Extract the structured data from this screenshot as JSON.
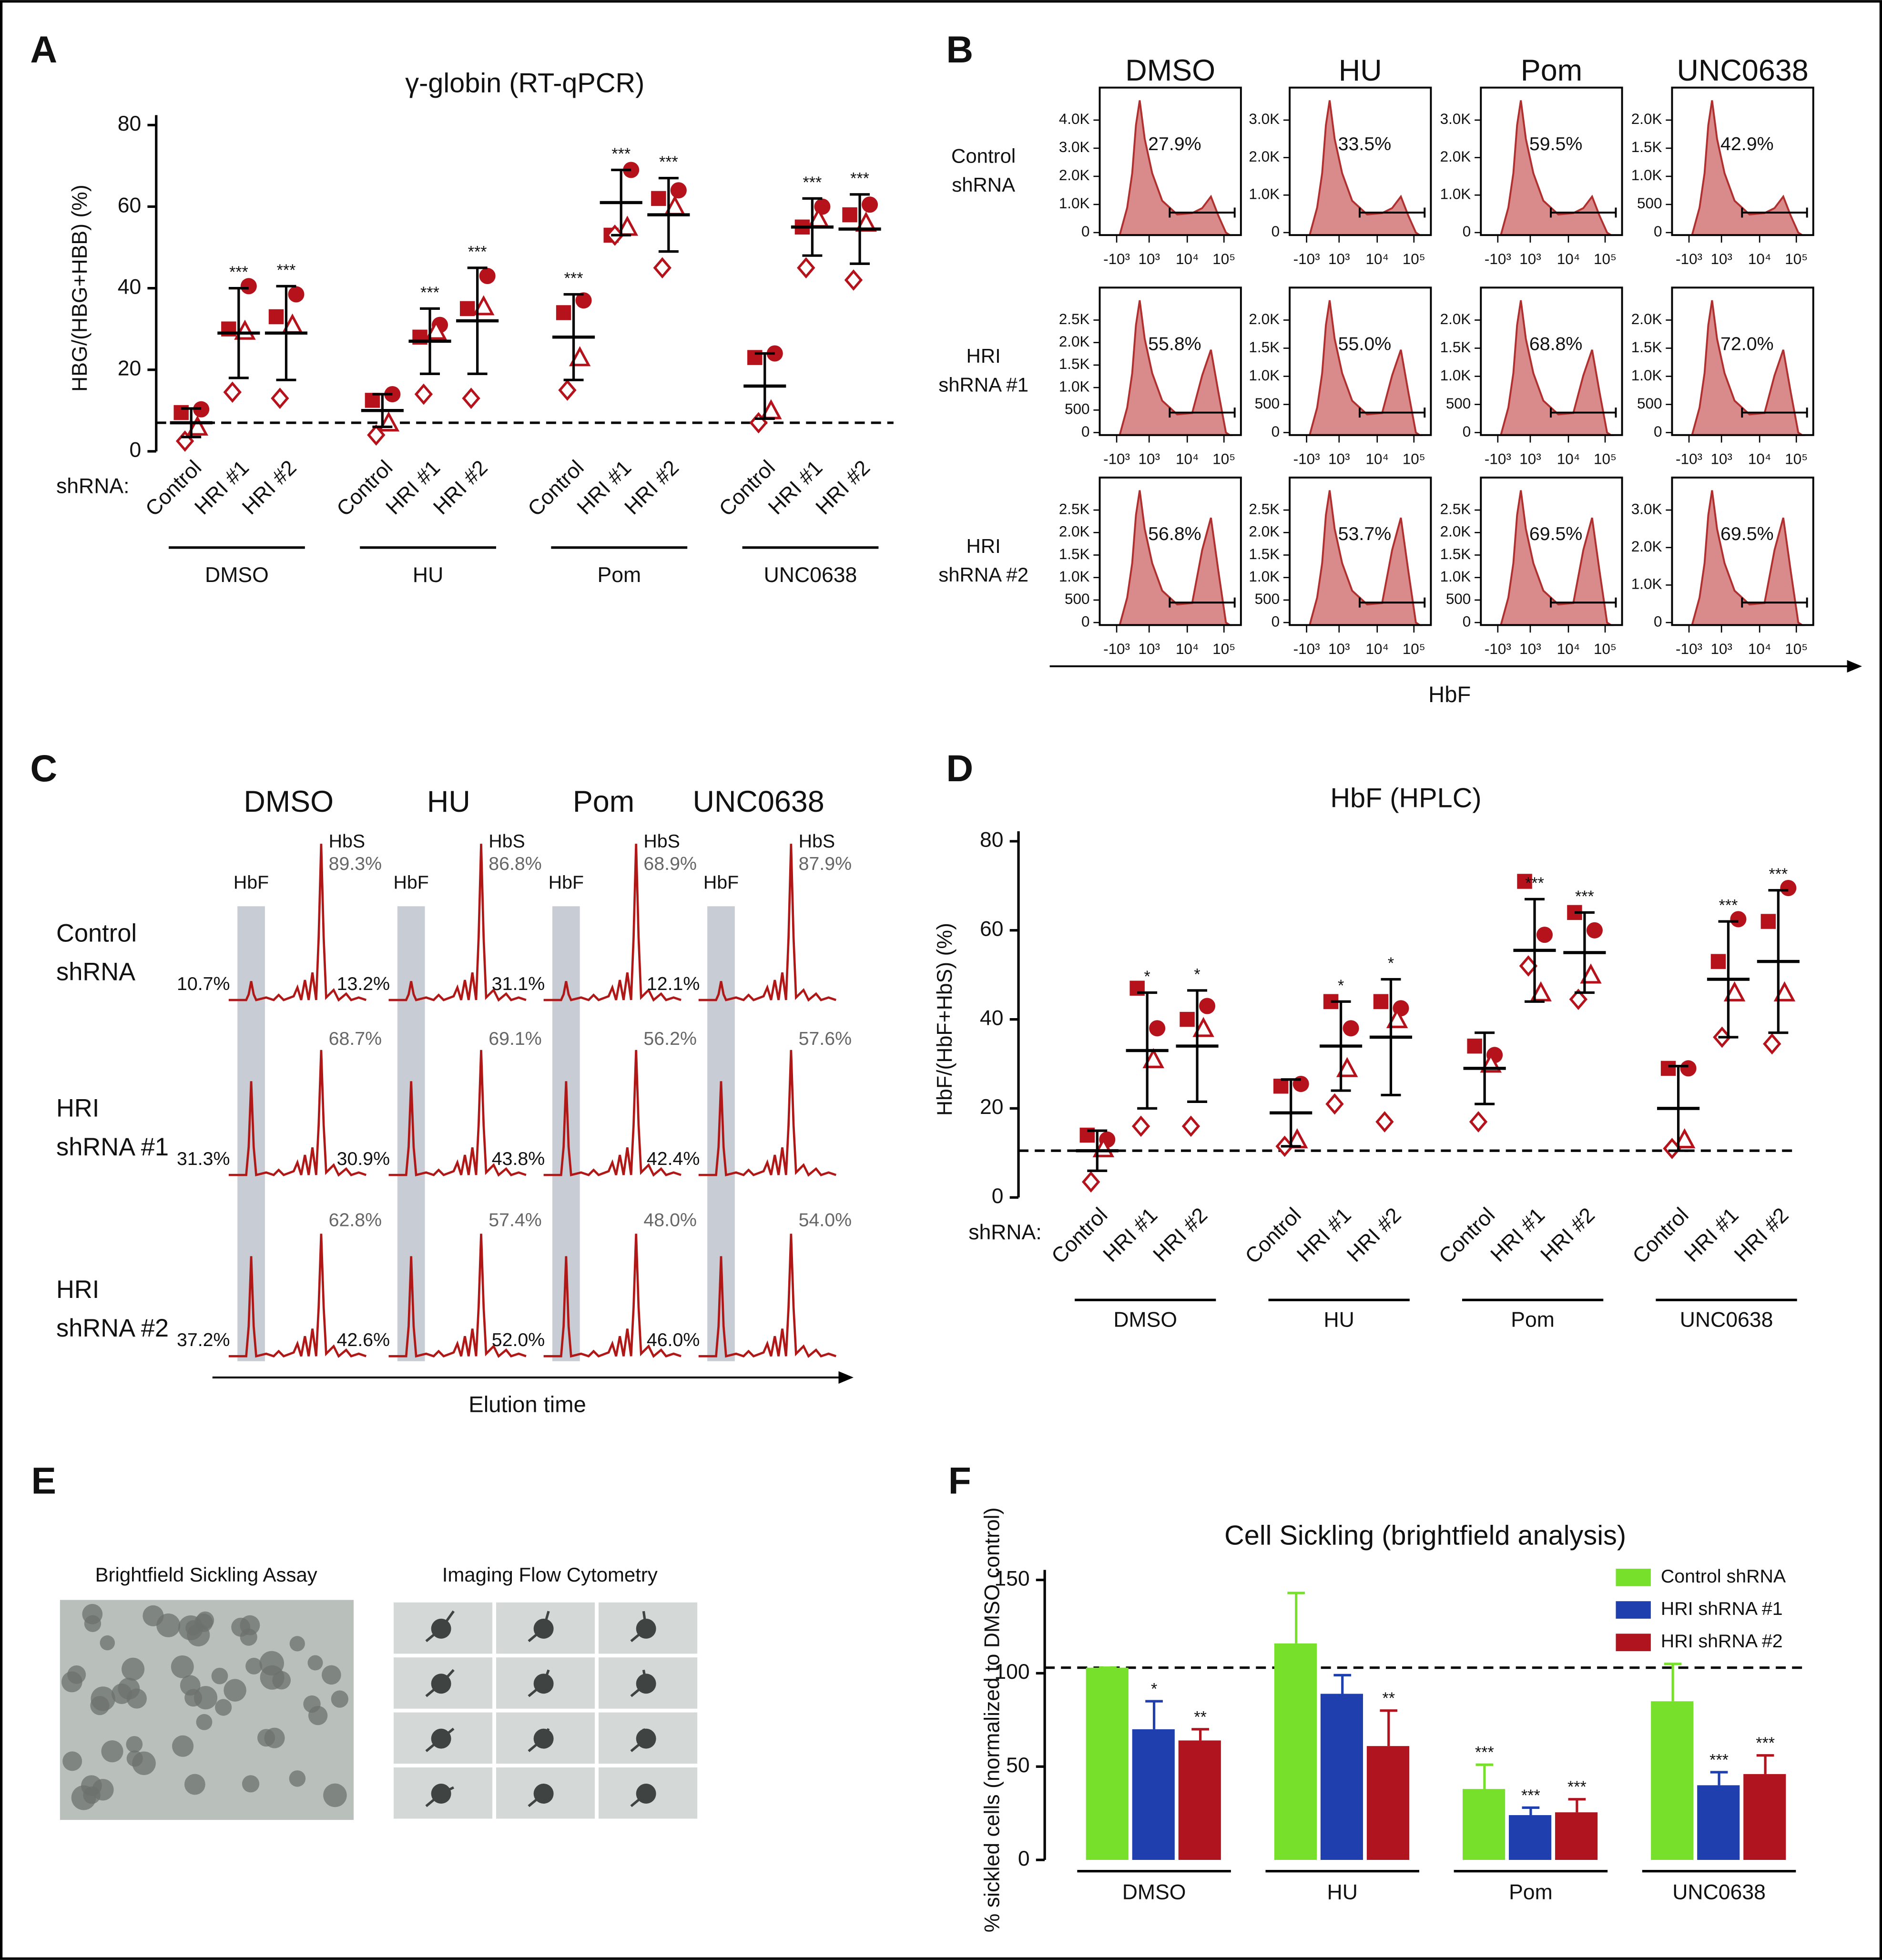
{
  "panel_labels": [
    "A",
    "B",
    "C",
    "D",
    "E",
    "F"
  ],
  "chart_data": [
    {
      "type": "dot",
      "title": "γ-globin (RT-qPCR)",
      "y_label": "HBG/(HBG+HBB) (%)",
      "row_label": "shRNA:",
      "ylim": [
        0,
        80
      ],
      "yticks": [
        0,
        20,
        40,
        60,
        80
      ],
      "categories": [
        "Control",
        "HRI #1",
        "HRI #2",
        "Control",
        "HRI #1",
        "HRI #2",
        "Control",
        "HRI #1",
        "HRI #2",
        "Control",
        "HRI #1",
        "HRI #2"
      ],
      "groups": [
        "DMSO",
        "HU",
        "Pom",
        "UNC0638"
      ],
      "series": [
        {
          "marker": "square",
          "color": "#b5121b",
          "values": [
            9.5,
            30,
            33,
            12.5,
            28,
            35,
            34,
            53,
            62,
            23,
            55,
            58
          ]
        },
        {
          "marker": "circle",
          "color": "#b5121b",
          "values": [
            10.3,
            40.5,
            38.5,
            14,
            31,
            43,
            37,
            69,
            64,
            24,
            60,
            60.5
          ]
        },
        {
          "marker": "triangle-open",
          "color": "#b5121b",
          "values": [
            6,
            29.5,
            31,
            7,
            29.5,
            35.5,
            23,
            55,
            60,
            10,
            57,
            56
          ]
        },
        {
          "marker": "diamond-open",
          "color": "#b5121b",
          "values": [
            2.5,
            14.5,
            13,
            4,
            14,
            13,
            15,
            53,
            45,
            7,
            45,
            42
          ]
        }
      ],
      "mean": [
        7,
        29,
        29,
        10,
        27,
        32,
        28,
        61,
        58,
        16,
        55,
        54.5
      ],
      "sd": [
        3.5,
        11,
        11.5,
        4,
        8,
        13,
        10.5,
        8,
        9,
        8,
        7,
        8.5
      ],
      "significance": [
        null,
        "***",
        "***",
        null,
        "***",
        "***",
        "***",
        "***",
        "***",
        null,
        "***",
        "***"
      ],
      "reference_line": 7
    },
    {
      "type": "dot",
      "title": "HbF (HPLC)",
      "y_label": "HbF/(HbF+HbS) (%)",
      "row_label": "shRNA:",
      "ylim": [
        0,
        80
      ],
      "yticks": [
        0,
        20,
        40,
        60,
        80
      ],
      "categories": [
        "Control",
        "HRI #1",
        "HRI #2",
        "Control",
        "HRI #1",
        "HRI #2",
        "Control",
        "HRI #1",
        "HRI #2",
        "Control",
        "HRI #1",
        "HRI #2"
      ],
      "groups": [
        "DMSO",
        "HU",
        "Pom",
        "UNC0638"
      ],
      "series": [
        {
          "marker": "square",
          "color": "#b5121b",
          "values": [
            14,
            47,
            40,
            25,
            44,
            44,
            34,
            71,
            64,
            29,
            53,
            62
          ]
        },
        {
          "marker": "circle",
          "color": "#b5121b",
          "values": [
            13,
            38,
            43,
            25.5,
            38,
            42.5,
            32,
            59,
            60,
            29,
            62.5,
            69.5
          ]
        },
        {
          "marker": "triangle-open",
          "color": "#b5121b",
          "values": [
            11,
            31,
            38,
            13,
            29,
            40,
            30,
            46,
            50,
            13,
            46,
            46
          ]
        },
        {
          "marker": "diamond-open",
          "color": "#b5121b",
          "values": [
            3.5,
            16,
            16,
            11.5,
            21,
            17,
            17,
            52,
            44.5,
            11,
            36,
            34.5
          ]
        }
      ],
      "mean": [
        10.5,
        33,
        34,
        19,
        34,
        36,
        29,
        55.5,
        55,
        20,
        49,
        53
      ],
      "sd": [
        4.5,
        13,
        12.5,
        7.5,
        10,
        13,
        8,
        11.5,
        9,
        9.5,
        13,
        16
      ],
      "significance": [
        null,
        "*",
        "*",
        null,
        "*",
        "*",
        null,
        "***",
        "***",
        null,
        "***",
        "***"
      ],
      "reference_line": 10.5
    },
    {
      "type": "bar",
      "title": "Cell Sickling (brightfield analysis)",
      "y_label": "% sickled cells (normalized to DMSO control)",
      "categories": [
        "DMSO",
        "HU",
        "Pom",
        "UNC0638"
      ],
      "ylim": [
        0,
        150
      ],
      "yticks": [
        0,
        50,
        100,
        150
      ],
      "reference_line": 103,
      "legend": "upper right",
      "series": [
        {
          "name": "Control shRNA",
          "color": "#77e02a",
          "values": [
            103,
            116,
            38,
            85
          ],
          "errors": [
            0,
            27,
            13,
            20
          ],
          "significance": [
            null,
            null,
            "***",
            null
          ]
        },
        {
          "name": "HRI shRNA #1",
          "color": "#1f3fae",
          "values": [
            70,
            89,
            24,
            40
          ],
          "errors": [
            15,
            10,
            4,
            7
          ],
          "significance": [
            "*",
            null,
            "***",
            "***"
          ]
        },
        {
          "name": "HRI shRNA #2",
          "color": "#b0151f",
          "values": [
            64,
            61,
            25.5,
            46
          ],
          "errors": [
            6,
            19,
            7,
            10
          ],
          "significance": [
            "**",
            "**",
            "***",
            "***"
          ]
        }
      ]
    }
  ],
  "panel_b": {
    "columns": [
      "DMSO",
      "HU",
      "Pom",
      "UNC0638"
    ],
    "rows": [
      [
        "Control",
        "shRNA"
      ],
      [
        "HRI",
        "shRNA #1"
      ],
      [
        "HRI",
        "shRNA #2"
      ]
    ],
    "x_tick_labels": [
      "-10³",
      "10³",
      "10⁴",
      "10⁵"
    ],
    "x_label": "HbF",
    "plots": [
      [
        {
          "percent": "27.9%",
          "y_tick_labels": [
            0,
            "1.0K",
            "2.0K",
            "3.0K",
            "4.0K"
          ]
        },
        {
          "percent": "33.5%",
          "y_tick_labels": [
            0,
            "1.0K",
            "2.0K",
            "3.0K"
          ]
        },
        {
          "percent": "59.5%",
          "y_tick_labels": [
            0,
            "1.0K",
            "2.0K",
            "3.0K"
          ]
        },
        {
          "percent": "42.9%",
          "y_tick_labels": [
            0,
            500,
            "1.0K",
            "1.5K",
            "2.0K"
          ]
        }
      ],
      [
        {
          "percent": "55.8%",
          "y_tick_labels": [
            0,
            500,
            "1.0K",
            "1.5K",
            "2.0K",
            "2.5K"
          ]
        },
        {
          "percent": "55.0%",
          "y_tick_labels": [
            0,
            500,
            "1.0K",
            "1.5K",
            "2.0K"
          ]
        },
        {
          "percent": "68.8%",
          "y_tick_labels": [
            0,
            500,
            "1.0K",
            "1.5K",
            "2.0K"
          ]
        },
        {
          "percent": "72.0%",
          "y_tick_labels": [
            0,
            500,
            "1.0K",
            "1.5K",
            "2.0K"
          ]
        }
      ],
      [
        {
          "percent": "56.8%",
          "y_tick_labels": [
            0,
            500,
            "1.0K",
            "1.5K",
            "2.0K",
            "2.5K"
          ]
        },
        {
          "percent": "53.7%",
          "y_tick_labels": [
            0,
            500,
            "1.0K",
            "1.5K",
            "2.0K",
            "2.5K"
          ]
        },
        {
          "percent": "69.5%",
          "y_tick_labels": [
            0,
            500,
            "1.0K",
            "1.5K",
            "2.0K",
            "2.5K"
          ]
        },
        {
          "percent": "69.5%",
          "y_tick_labels": [
            0,
            "1.0K",
            "2.0K",
            "3.0K"
          ]
        }
      ]
    ]
  },
  "panel_c": {
    "columns": [
      "DMSO",
      "HU",
      "Pom",
      "UNC0638"
    ],
    "rows": [
      [
        "Control",
        "shRNA"
      ],
      [
        "HRI",
        "shRNA #1"
      ],
      [
        "HRI",
        "shRNA #2"
      ]
    ],
    "peak_labels": {
      "hbf": "HbF",
      "hbs": "HbS"
    },
    "x_label": "Elution time",
    "values": [
      [
        {
          "hbf": "10.7%",
          "hbs": "89.3%"
        },
        {
          "hbf": "13.2%",
          "hbs": "86.8%"
        },
        {
          "hbf": "31.1%",
          "hbs": "68.9%"
        },
        {
          "hbf": "12.1%",
          "hbs": "87.9%"
        }
      ],
      [
        {
          "hbf": "31.3%",
          "hbs": "68.7%"
        },
        {
          "hbf": "30.9%",
          "hbs": "69.1%"
        },
        {
          "hbf": "43.8%",
          "hbs": "56.2%"
        },
        {
          "hbf": "42.4%",
          "hbs": "57.6%"
        }
      ],
      [
        {
          "hbf": "37.2%",
          "hbs": "62.8%"
        },
        {
          "hbf": "42.6%",
          "hbs": "57.4%"
        },
        {
          "hbf": "52.0%",
          "hbs": "48.0%"
        },
        {
          "hbf": "46.0%",
          "hbs": "54.0%"
        }
      ]
    ]
  },
  "panel_e": {
    "titles": [
      "Brightfield Sickling Assay",
      "Imaging Flow Cytometry"
    ]
  }
}
